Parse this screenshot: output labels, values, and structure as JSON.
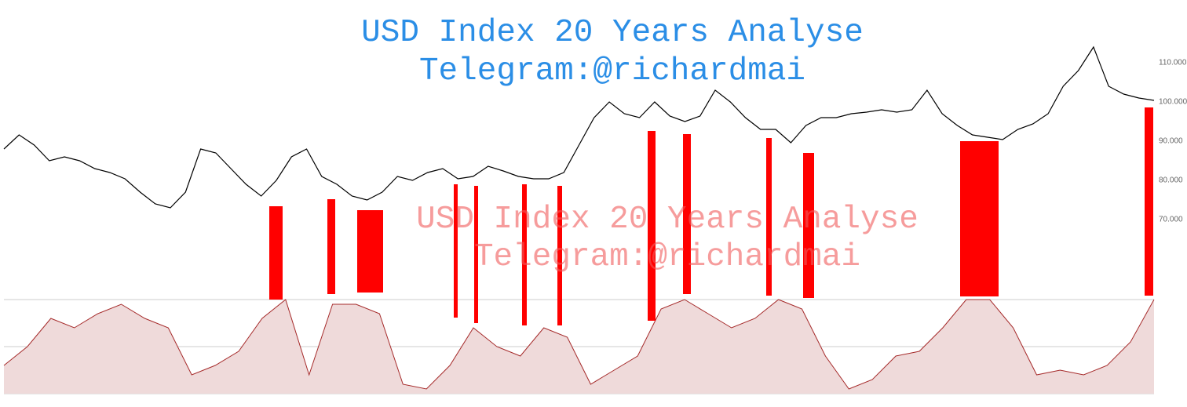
{
  "chart_data": [
    {
      "type": "line",
      "title": "USD Index 20 Years Analyse",
      "subtitle": "Telegram:@richardmai",
      "watermark": [
        "USD Index 20 Years Analyse",
        "Telegram:@richardmai"
      ],
      "series": [
        {
          "color": "#000000",
          "values": [
            88,
            91.6,
            89,
            85,
            86,
            85,
            83,
            82,
            80.4,
            77,
            74,
            73,
            77,
            88,
            87,
            83,
            79,
            76,
            80,
            86,
            88,
            81,
            79,
            76,
            75,
            77,
            81,
            80,
            82,
            83,
            80.4,
            81,
            83.6,
            82.4,
            81,
            80.4,
            80.4,
            82,
            89,
            96,
            100,
            97,
            96,
            100,
            96.4,
            95,
            96.4,
            103,
            100,
            96,
            93,
            93,
            89.6,
            94,
            96,
            96,
            97,
            97.4,
            98,
            97.4,
            98,
            103,
            97,
            94,
            91.6,
            91,
            90.4,
            93,
            94.4,
            97,
            104,
            108,
            114,
            104,
            102,
            101,
            100.4
          ]
        }
      ],
      "ylim": [
        49.6,
        126
      ],
      "yticks": [
        {
          "value": 70,
          "label": "70.000"
        },
        {
          "value": 80,
          "label": "80.000"
        },
        {
          "value": 90,
          "label": "90.000"
        },
        {
          "value": 100,
          "label": "100.000"
        },
        {
          "value": 110,
          "label": "110.000"
        }
      ]
    },
    {
      "type": "area",
      "series": [
        {
          "color": "#a52a2a",
          "values": [
            30,
            50,
            80,
            70,
            85,
            95,
            80,
            70,
            20,
            30,
            45,
            80,
            100,
            20,
            95,
            95,
            85,
            10,
            5,
            30,
            70,
            50,
            40,
            70,
            60,
            10,
            25,
            40,
            90,
            100,
            85,
            70,
            80,
            100,
            90,
            40,
            5,
            15,
            40,
            45,
            70,
            100,
            100,
            70,
            20,
            25,
            20,
            30,
            55,
            100
          ]
        }
      ],
      "ylim": [
        0,
        100
      ],
      "yticks": [
        0,
        50,
        100
      ],
      "grid": true
    }
  ]
}
